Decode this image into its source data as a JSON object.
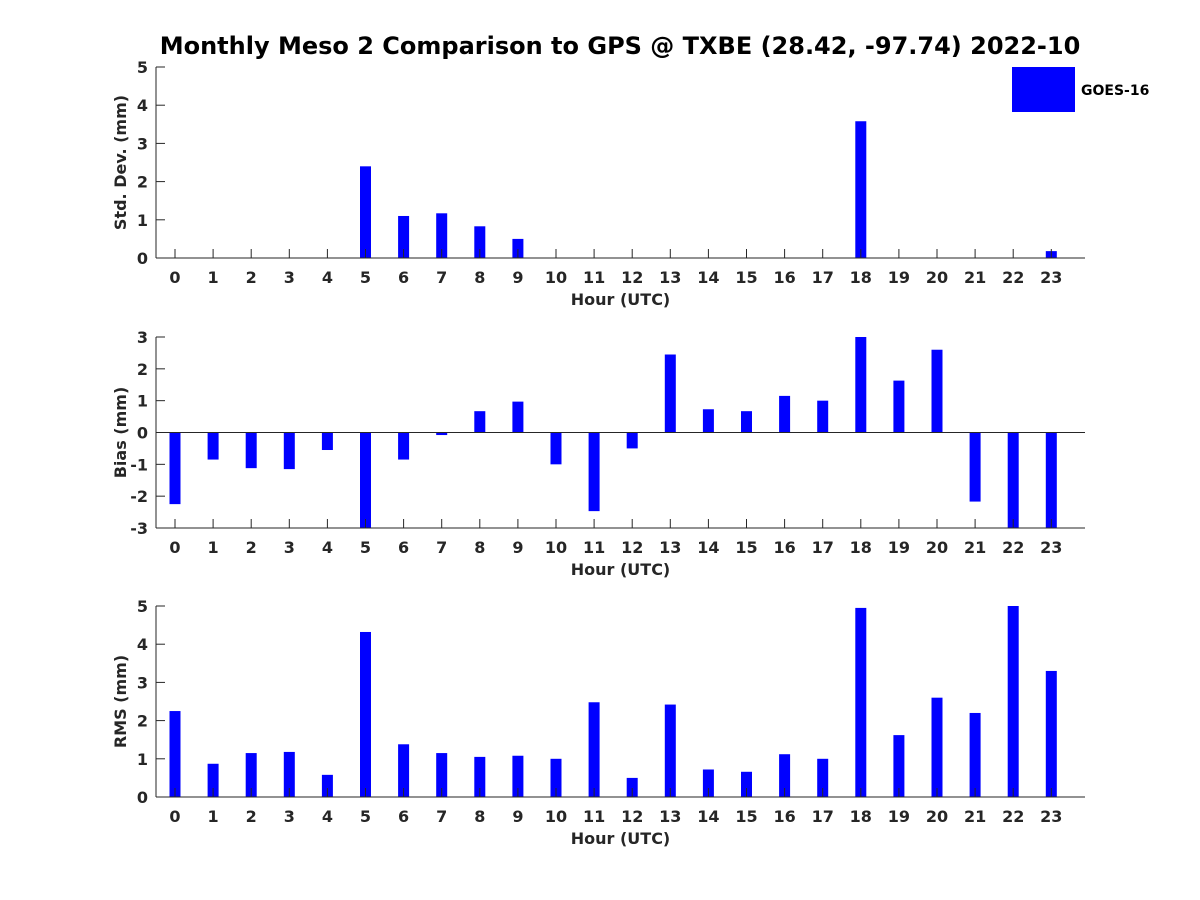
{
  "figure": {
    "title": "Monthly Meso 2 Comparison to GPS @ TXBE (28.42, -97.74) 2022-10",
    "legend": {
      "label": "GOES-16",
      "color": "#0000ff",
      "placement": "top-right"
    }
  },
  "chart_data": [
    {
      "type": "bar",
      "categories": [
        "0",
        "1",
        "2",
        "3",
        "4",
        "5",
        "6",
        "7",
        "8",
        "9",
        "10",
        "11",
        "12",
        "13",
        "14",
        "15",
        "16",
        "17",
        "18",
        "19",
        "20",
        "21",
        "22",
        "23"
      ],
      "series": [
        {
          "name": "GOES-16",
          "values": [
            null,
            null,
            null,
            null,
            null,
            2.4,
            1.1,
            1.17,
            0.83,
            0.5,
            null,
            null,
            null,
            null,
            null,
            null,
            null,
            null,
            3.58,
            null,
            null,
            null,
            null,
            0.18
          ]
        }
      ],
      "xlabel": "Hour (UTC)",
      "ylabel": "Std. Dev. (mm)",
      "ylim": [
        0,
        5
      ],
      "yticks": [
        "0",
        "1",
        "2",
        "3",
        "4",
        "5"
      ],
      "grid": false
    },
    {
      "type": "bar",
      "categories": [
        "0",
        "1",
        "2",
        "3",
        "4",
        "5",
        "6",
        "7",
        "8",
        "9",
        "10",
        "11",
        "12",
        "13",
        "14",
        "15",
        "16",
        "17",
        "18",
        "19",
        "20",
        "21",
        "22",
        "23"
      ],
      "series": [
        {
          "name": "GOES-16",
          "values": [
            -2.25,
            -0.85,
            -1.12,
            -1.15,
            -0.55,
            -3.0,
            -0.85,
            -0.08,
            0.67,
            0.97,
            -1.0,
            -2.47,
            -0.5,
            2.45,
            0.73,
            0.67,
            1.15,
            1.0,
            3.0,
            1.63,
            2.6,
            -2.17,
            -3.0,
            -3.0
          ]
        }
      ],
      "xlabel": "Hour (UTC)",
      "ylabel": "Bias (mm)",
      "ylim": [
        -3,
        3
      ],
      "yticks": [
        "-3",
        "-2",
        "-1",
        "0",
        "1",
        "2",
        "3"
      ],
      "grid": false
    },
    {
      "type": "bar",
      "categories": [
        "0",
        "1",
        "2",
        "3",
        "4",
        "5",
        "6",
        "7",
        "8",
        "9",
        "10",
        "11",
        "12",
        "13",
        "14",
        "15",
        "16",
        "17",
        "18",
        "19",
        "20",
        "21",
        "22",
        "23"
      ],
      "series": [
        {
          "name": "GOES-16",
          "values": [
            2.25,
            0.87,
            1.15,
            1.18,
            0.58,
            4.32,
            1.38,
            1.15,
            1.05,
            1.08,
            1.0,
            2.48,
            0.5,
            2.42,
            0.72,
            0.66,
            1.12,
            1.0,
            4.95,
            1.62,
            2.6,
            2.2,
            5.0,
            3.3
          ]
        }
      ],
      "xlabel": "Hour (UTC)",
      "ylabel": "RMS (mm)",
      "ylim": [
        0,
        5
      ],
      "yticks": [
        "0",
        "1",
        "2",
        "3",
        "4",
        "5"
      ],
      "grid": false
    }
  ]
}
